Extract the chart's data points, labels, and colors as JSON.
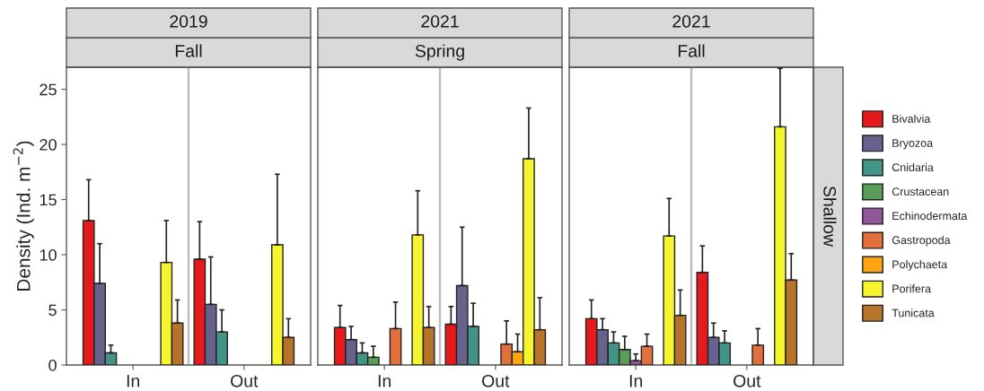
{
  "chart_data": [
    {
      "type": "bar",
      "title": "2019",
      "subtitle": "Fall",
      "ylabel": "Density (Ind. m$^{−2}$)",
      "categories": [
        "In",
        "Out"
      ],
      "ylim": [
        0,
        27
      ],
      "yticks": [
        0,
        5,
        10,
        15,
        20,
        25
      ],
      "grid": false,
      "legend": false,
      "series": [
        {
          "color": "#e41a1c",
          "values": [
            13.1,
            9.6
          ],
          "errors": [
            [
              13.1,
              16.8
            ],
            [
              9.6,
              13.0
            ]
          ]
        },
        {
          "color": "#66628d",
          "values": [
            7.4,
            5.5
          ],
          "errors": [
            [
              7.4,
              11.0
            ],
            [
              5.5,
              9.8
            ]
          ]
        },
        {
          "color": "#419486",
          "values": [
            1.1,
            3.0
          ],
          "errors": [
            [
              1.1,
              1.8
            ],
            [
              3.0,
              5.0
            ]
          ]
        },
        {
          "values": [
            null,
            null
          ]
        },
        {
          "values": [
            null,
            null
          ]
        },
        {
          "values": [
            null,
            null
          ]
        },
        {
          "values": [
            null,
            null
          ]
        },
        {
          "color": "#f4f42f",
          "values": [
            9.3,
            10.9
          ],
          "errors": [
            [
              9.3,
              13.1
            ],
            [
              10.9,
              17.3
            ]
          ]
        },
        {
          "color": "#b6742a",
          "values": [
            3.8,
            2.5
          ],
          "errors": [
            [
              3.8,
              5.9
            ],
            [
              2.5,
              4.2
            ]
          ]
        }
      ]
    },
    {
      "type": "bar",
      "title": "2021",
      "subtitle": "Spring",
      "categories": [
        "In",
        "Out"
      ],
      "ylim": [
        0,
        27
      ],
      "yticks": [
        0,
        5,
        10,
        15,
        20,
        25
      ],
      "tick_labels": "x",
      "grid": false,
      "legend": false,
      "series": [
        {
          "color": "#e41a1c",
          "values": [
            3.4,
            3.7
          ],
          "errors": [
            [
              3.4,
              5.4
            ],
            [
              3.7,
              5.3
            ]
          ]
        },
        {
          "color": "#66628d",
          "values": [
            2.3,
            7.2
          ],
          "errors": [
            [
              2.3,
              3.5
            ],
            [
              7.2,
              12.5
            ]
          ]
        },
        {
          "color": "#419486",
          "values": [
            1.1,
            3.5
          ],
          "errors": [
            [
              1.1,
              2.0
            ],
            [
              3.5,
              5.6
            ]
          ]
        },
        {
          "color": "#5a9d5a",
          "values": [
            0.7,
            null
          ],
          "errors": [
            [
              0.7,
              1.7
            ],
            null
          ]
        },
        {
          "values": [
            null,
            null
          ]
        },
        {
          "color": "#e1703d",
          "values": [
            3.3,
            1.9
          ],
          "errors": [
            [
              3.3,
              5.7
            ],
            [
              1.9,
              4.0
            ]
          ]
        },
        {
          "color": "#ffa411",
          "values": [
            null,
            1.2
          ],
          "errors": [
            null,
            [
              1.2,
              2.8
            ]
          ]
        },
        {
          "color": "#f4f42f",
          "values": [
            11.8,
            18.7
          ],
          "errors": [
            [
              11.8,
              15.8
            ],
            [
              18.7,
              23.3
            ]
          ]
        },
        {
          "color": "#b6742a",
          "values": [
            3.4,
            3.2
          ],
          "errors": [
            [
              3.4,
              5.3
            ],
            [
              3.2,
              6.1
            ]
          ]
        }
      ]
    },
    {
      "type": "bar",
      "title": "2021",
      "subtitle": "Fall",
      "annotations": [
        "Shallow"
      ],
      "categories": [
        "In",
        "Out"
      ],
      "ylim": [
        0,
        27
      ],
      "yticks": [
        0,
        5,
        10,
        15,
        20,
        25
      ],
      "tick_labels": "x",
      "grid": false,
      "legend": "right",
      "series": [
        {
          "name": "Bivalvia",
          "color": "#e41a1c",
          "values": [
            4.2,
            8.4
          ],
          "errors": [
            [
              4.2,
              5.9
            ],
            [
              8.4,
              10.8
            ]
          ]
        },
        {
          "name": "Bryozoa",
          "color": "#66628d",
          "values": [
            3.2,
            2.5
          ],
          "errors": [
            [
              3.2,
              4.2
            ],
            [
              2.5,
              3.8
            ]
          ]
        },
        {
          "name": "Cnidaria",
          "color": "#419486",
          "values": [
            2.0,
            2.0
          ],
          "errors": [
            [
              2.0,
              3.0
            ],
            [
              2.0,
              3.1
            ]
          ]
        },
        {
          "name": "Crustacean",
          "color": "#5a9d5a",
          "values": [
            1.4,
            null
          ],
          "errors": [
            [
              1.4,
              2.6
            ],
            null
          ]
        },
        {
          "name": "Echinodermata",
          "color": "#91569b",
          "values": [
            0.4,
            null
          ],
          "errors": [
            [
              0.4,
              1.0
            ],
            null
          ]
        },
        {
          "name": "Gastropoda",
          "color": "#e1703d",
          "values": [
            1.7,
            1.8
          ],
          "errors": [
            [
              1.7,
              2.8
            ],
            [
              1.8,
              3.3
            ]
          ]
        },
        {
          "name": "Polychaeta",
          "color": "#ffa411",
          "values": [
            null,
            null
          ]
        },
        {
          "name": "Porifera",
          "color": "#f4f42f",
          "values": [
            11.7,
            21.6
          ],
          "errors": [
            [
              11.7,
              15.1
            ],
            [
              21.6,
              26.9
            ]
          ]
        },
        {
          "name": "Tunicata",
          "color": "#b6742a",
          "values": [
            4.5,
            7.7
          ],
          "errors": [
            [
              4.5,
              6.8
            ],
            [
              7.7,
              10.1
            ]
          ]
        }
      ]
    }
  ]
}
